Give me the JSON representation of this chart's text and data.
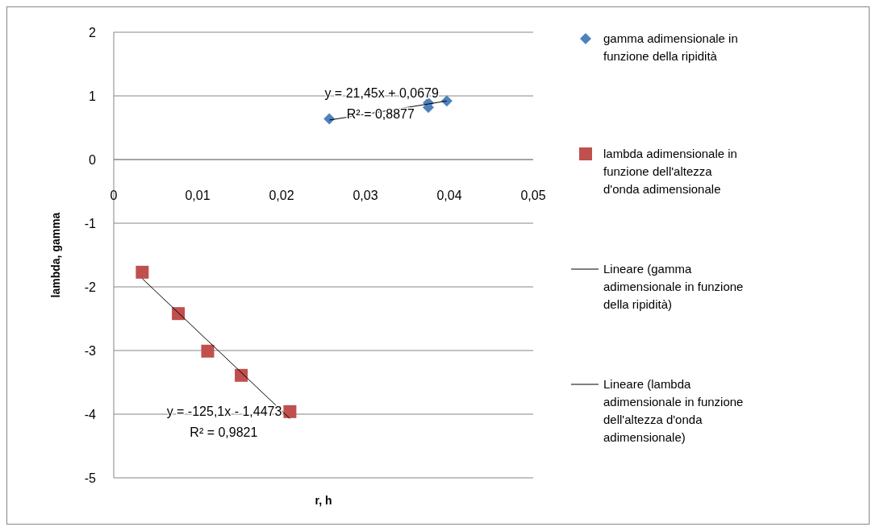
{
  "chart_data": {
    "type": "scatter",
    "xlabel": "r, h",
    "ylabel": "lambda, gamma",
    "xlim": [
      0,
      0.05
    ],
    "ylim": [
      -5,
      2
    ],
    "xticks": [
      {
        "value": 0,
        "label": "0"
      },
      {
        "value": 0.01,
        "label": "0,01"
      },
      {
        "value": 0.02,
        "label": "0,02"
      },
      {
        "value": 0.03,
        "label": "0,03"
      },
      {
        "value": 0.04,
        "label": "0,04"
      },
      {
        "value": 0.05,
        "label": "0,05"
      }
    ],
    "yticks": [
      -5,
      -4,
      -3,
      -2,
      -1,
      0,
      1,
      2
    ],
    "grid": "y",
    "legend": "right",
    "series": [
      {
        "name": "gamma adimensionale in funzione della ripidità",
        "marker": "diamond",
        "color": "#4f81bd",
        "x": [
          0.0257,
          0.0375,
          0.0375,
          0.0397
        ],
        "values": [
          0.64,
          0.89,
          0.82,
          0.92
        ]
      },
      {
        "name": "lambda adimensionale in funzione dell'altezza d'onda adimensionale",
        "marker": "square",
        "color": "#c0504d",
        "x": [
          0.0034,
          0.0077,
          0.0112,
          0.0152,
          0.021
        ],
        "values": [
          -1.77,
          -2.42,
          -3.01,
          -3.39,
          -3.96
        ]
      },
      {
        "name": "Lineare (gamma adimensionale in funzione della ripidità)",
        "type": "line",
        "marker": "none",
        "color": "#000000",
        "x": [
          0.0257,
          0.0397
        ],
        "values": [
          0.62,
          0.92
        ]
      },
      {
        "name": "Lineare (lambda adimensionale in funzione dell'altezza d'onda adimensionale)",
        "type": "line",
        "marker": "none",
        "color": "#000000",
        "x": [
          0.0034,
          0.021
        ],
        "values": [
          -1.87,
          -4.07
        ]
      }
    ],
    "annotations": [
      "y = 21,45x + 0,0679",
      "R² = 0,8877",
      "y = -125,1x - 1,4473",
      "R² = 0,9821"
    ]
  }
}
